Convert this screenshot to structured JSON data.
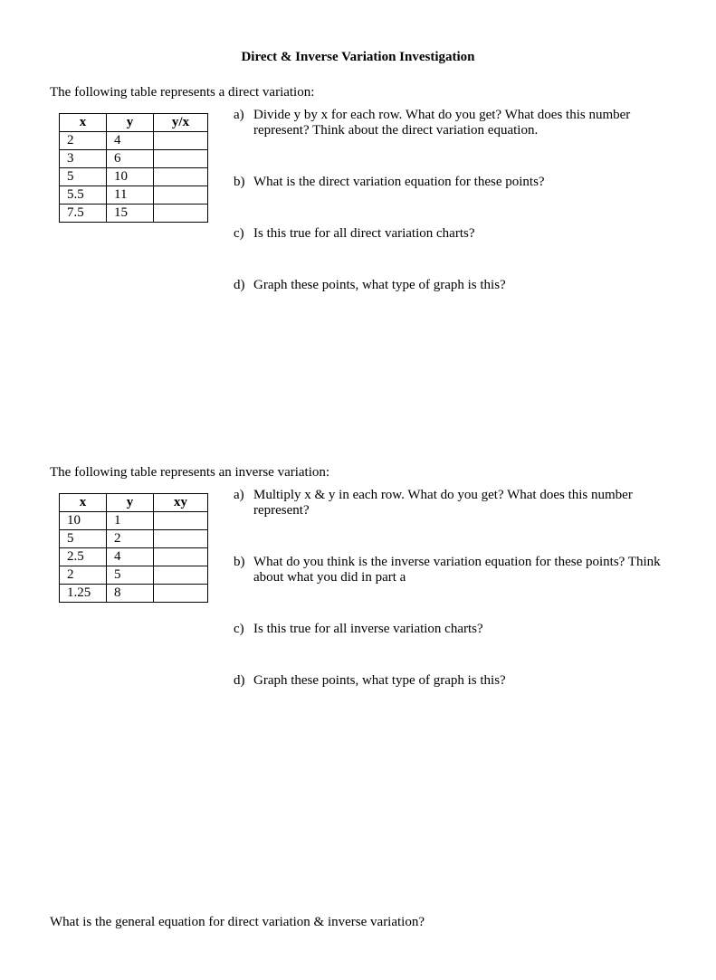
{
  "title": "Direct & Inverse Variation Investigation",
  "section1": {
    "intro": "The following table represents a direct variation:",
    "table": {
      "headers": {
        "x": "x",
        "y": "y",
        "calc": "y/x"
      },
      "rows": [
        {
          "x": "2",
          "y": "4",
          "calc": ""
        },
        {
          "x": "3",
          "y": "6",
          "calc": ""
        },
        {
          "x": "5",
          "y": "10",
          "calc": ""
        },
        {
          "x": "5.5",
          "y": "11",
          "calc": ""
        },
        {
          "x": "7.5",
          "y": "15",
          "calc": ""
        }
      ]
    },
    "questions": {
      "a": {
        "letter": "a)",
        "text": "Divide y by x for each row. What do you get? What does this number represent? Think about the direct variation equation."
      },
      "b": {
        "letter": "b)",
        "text": "What is the direct variation equation for these points?"
      },
      "c": {
        "letter": "c)",
        "text": "Is this true for all direct variation charts?"
      },
      "d": {
        "letter": "d)",
        "text": "Graph these points, what type of graph is this?"
      }
    }
  },
  "section2": {
    "intro": "The following table represents an inverse variation:",
    "table": {
      "headers": {
        "x": "x",
        "y": "y",
        "calc": "xy"
      },
      "rows": [
        {
          "x": "10",
          "y": "1",
          "calc": ""
        },
        {
          "x": "5",
          "y": "2",
          "calc": ""
        },
        {
          "x": "2.5",
          "y": "4",
          "calc": ""
        },
        {
          "x": "2",
          "y": "5",
          "calc": ""
        },
        {
          "x": "1.25",
          "y": "8",
          "calc": ""
        }
      ]
    },
    "questions": {
      "a": {
        "letter": "a)",
        "text": "Multiply x & y in each row. What do you get? What does this number represent?"
      },
      "b": {
        "letter": "b)",
        "text": "What do you think is the inverse variation equation for these points? Think about what you did in part a"
      },
      "c": {
        "letter": "c)",
        "text": "Is this true for all inverse variation charts?"
      },
      "d": {
        "letter": "d)",
        "text": "Graph these points, what type of graph is this?"
      }
    }
  },
  "final": "What is the general equation for direct variation & inverse variation?"
}
